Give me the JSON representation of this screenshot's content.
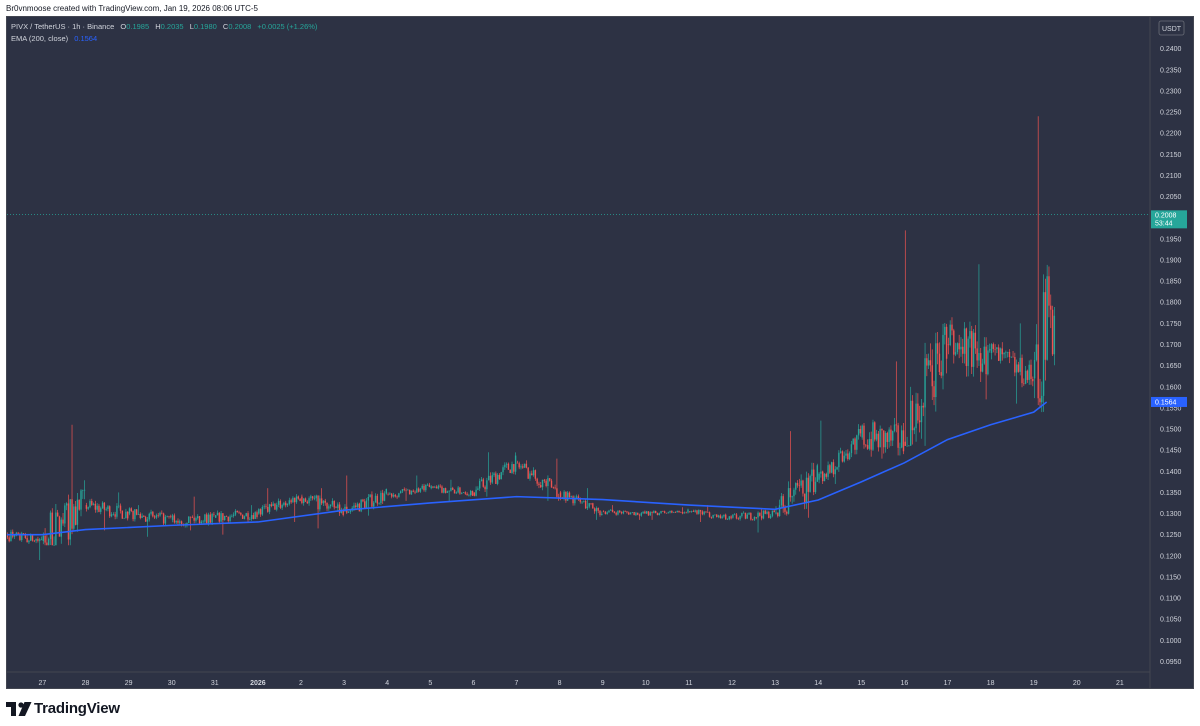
{
  "header": {
    "credit": "Br0vnmoose created with TradingView.com, Jan 19, 2026 08:06 UTC-5"
  },
  "legend": {
    "symbol": "PIVX / TetherUS · 1h · Binance",
    "o_label": "O",
    "o_value": "0.1985",
    "h_label": "H",
    "h_value": "0.2035",
    "l_label": "L",
    "l_value": "0.1980",
    "c_label": "C",
    "c_value": "0.2008",
    "change": "+0.0025 (+1.26%)",
    "ema_label": "EMA (200, close)",
    "ema_value": "0.1564"
  },
  "colors": {
    "background": "#2d3244",
    "up": "#26a69a",
    "down": "#ef5350",
    "ema": "#2962ff",
    "axis_text": "#d1d4dc"
  },
  "footer": {
    "logo_text": "TradingView",
    "logo_icon": "tradingview-logo-icon"
  },
  "chart_data": {
    "type": "candlestick",
    "title": "PIVX / TetherUS · 1h · Binance",
    "currency": "USDT",
    "ylim": [
      0.0925,
      0.2475
    ],
    "yticks": [
      "0.2400",
      "0.2350",
      "0.2300",
      "0.2250",
      "0.2200",
      "0.2150",
      "0.2100",
      "0.2050",
      "0.2000",
      "0.1950",
      "0.1900",
      "0.1850",
      "0.1800",
      "0.1750",
      "0.1700",
      "0.1650",
      "0.1600",
      "0.1550",
      "0.1500",
      "0.1450",
      "0.1400",
      "0.1350",
      "0.1300",
      "0.1250",
      "0.1200",
      "0.1150",
      "0.1100",
      "0.1050",
      "0.1000",
      "0.0950"
    ],
    "xticks": [
      "27",
      "28",
      "29",
      "30",
      "31",
      "2026",
      "2",
      "3",
      "4",
      "5",
      "6",
      "7",
      "8",
      "9",
      "10",
      "11",
      "12",
      "13",
      "14",
      "15",
      "16",
      "17",
      "18",
      "19",
      "20",
      "21"
    ],
    "xlim": [
      26.2,
      21.9
    ],
    "price_marker": {
      "value": 0.2008,
      "label": "0.2008",
      "countdown": "53:44"
    },
    "ema_marker": {
      "value": 0.1564,
      "label": "0.1564"
    },
    "ohlc_daily_approx": [
      {
        "day": "26",
        "open": 0.125,
        "high": 0.1265,
        "low": 0.119,
        "close": 0.1235
      },
      {
        "day": "27",
        "open": 0.1235,
        "high": 0.151,
        "low": 0.1225,
        "close": 0.132
      },
      {
        "day": "28",
        "open": 0.132,
        "high": 0.135,
        "low": 0.126,
        "close": 0.13
      },
      {
        "day": "29",
        "open": 0.13,
        "high": 0.132,
        "low": 0.1245,
        "close": 0.1285
      },
      {
        "day": "30",
        "open": 0.1285,
        "high": 0.134,
        "low": 0.126,
        "close": 0.129
      },
      {
        "day": "31",
        "open": 0.129,
        "high": 0.132,
        "low": 0.125,
        "close": 0.13
      },
      {
        "day": "1",
        "open": 0.13,
        "high": 0.136,
        "low": 0.128,
        "close": 0.134
      },
      {
        "day": "2",
        "open": 0.134,
        "high": 0.136,
        "low": 0.1265,
        "close": 0.1305
      },
      {
        "day": "3",
        "open": 0.1305,
        "high": 0.139,
        "low": 0.1295,
        "close": 0.1345
      },
      {
        "day": "4",
        "open": 0.1345,
        "high": 0.139,
        "low": 0.133,
        "close": 0.136
      },
      {
        "day": "5",
        "open": 0.136,
        "high": 0.138,
        "low": 0.133,
        "close": 0.135
      },
      {
        "day": "6",
        "open": 0.135,
        "high": 0.1445,
        "low": 0.134,
        "close": 0.142
      },
      {
        "day": "7",
        "open": 0.142,
        "high": 0.143,
        "low": 0.133,
        "close": 0.135
      },
      {
        "day": "8",
        "open": 0.135,
        "high": 0.136,
        "low": 0.1285,
        "close": 0.1305
      },
      {
        "day": "9",
        "open": 0.1305,
        "high": 0.132,
        "low": 0.1285,
        "close": 0.13
      },
      {
        "day": "10",
        "open": 0.13,
        "high": 0.1315,
        "low": 0.1285,
        "close": 0.1305
      },
      {
        "day": "11",
        "open": 0.1305,
        "high": 0.132,
        "low": 0.128,
        "close": 0.129
      },
      {
        "day": "12",
        "open": 0.129,
        "high": 0.131,
        "low": 0.1255,
        "close": 0.13
      },
      {
        "day": "13",
        "open": 0.13,
        "high": 0.1495,
        "low": 0.129,
        "close": 0.138
      },
      {
        "day": "14",
        "open": 0.138,
        "high": 0.152,
        "low": 0.137,
        "close": 0.148
      },
      {
        "day": "15",
        "open": 0.148,
        "high": 0.166,
        "low": 0.143,
        "close": 0.147
      },
      {
        "day": "16",
        "open": 0.147,
        "high": 0.197,
        "low": 0.146,
        "close": 0.17
      },
      {
        "day": "17",
        "open": 0.17,
        "high": 0.189,
        "low": 0.157,
        "close": 0.168
      },
      {
        "day": "18",
        "open": 0.168,
        "high": 0.175,
        "low": 0.156,
        "close": 0.162
      },
      {
        "day": "19",
        "open": 0.162,
        "high": 0.224,
        "low": 0.154,
        "close": 0.2008
      }
    ],
    "ema_approx": [
      {
        "day": "26",
        "value": 0.125
      },
      {
        "day": "27",
        "value": 0.125
      },
      {
        "day": "28",
        "value": 0.1262
      },
      {
        "day": "30",
        "value": 0.1272
      },
      {
        "day": "1",
        "value": 0.128
      },
      {
        "day": "3",
        "value": 0.1308
      },
      {
        "day": "5",
        "value": 0.1325
      },
      {
        "day": "7",
        "value": 0.134
      },
      {
        "day": "9",
        "value": 0.1333
      },
      {
        "day": "11",
        "value": 0.132
      },
      {
        "day": "13",
        "value": 0.131
      },
      {
        "day": "14",
        "value": 0.1332
      },
      {
        "day": "15",
        "value": 0.1375
      },
      {
        "day": "16",
        "value": 0.142
      },
      {
        "day": "17",
        "value": 0.1475
      },
      {
        "day": "18",
        "value": 0.151
      },
      {
        "day": "19",
        "value": 0.154
      },
      {
        "day": "19.3",
        "value": 0.1564
      }
    ]
  }
}
